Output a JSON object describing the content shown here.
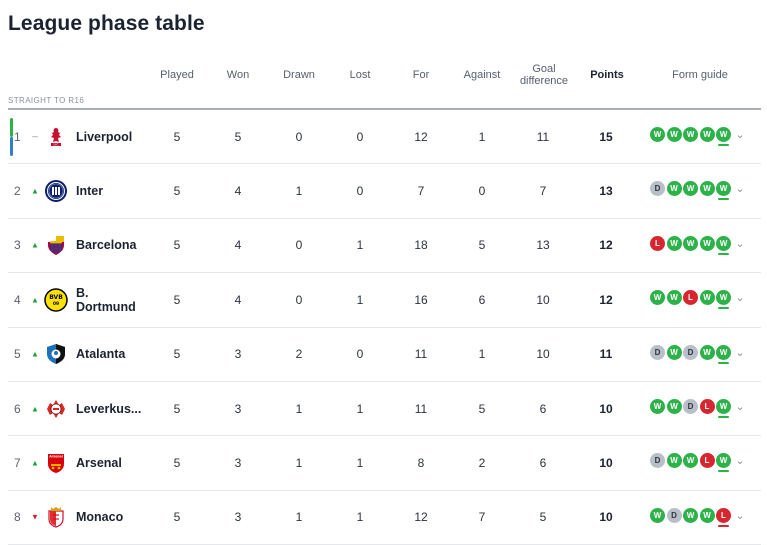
{
  "page_title": "League phase table",
  "headers": {
    "played": "Played",
    "won": "Won",
    "drawn": "Drawn",
    "lost": "Lost",
    "for": "For",
    "against": "Against",
    "gd_line1": "Goal",
    "gd_line2": "difference",
    "points": "Points",
    "form": "Form guide"
  },
  "section_label": "STRAIGHT TO R16",
  "colors": {
    "win": "#2db24a",
    "draw": "#b8bfc8",
    "loss": "#d6262f",
    "qualify_top": "#2db24a",
    "qualify_bottom": "#2e7fcf"
  },
  "rows": [
    {
      "pos": "1",
      "move": "same",
      "move_icon": "–",
      "team": "Liverpool",
      "crest": "liverpool-crest-icon",
      "played": "5",
      "won": "5",
      "drawn": "0",
      "lost": "0",
      "for": "12",
      "against": "1",
      "gd": "11",
      "points": "15",
      "form": [
        "W",
        "W",
        "W",
        "W",
        "W"
      ]
    },
    {
      "pos": "2",
      "move": "up",
      "move_icon": "▲",
      "team": "Inter",
      "crest": "inter-crest-icon",
      "played": "5",
      "won": "4",
      "drawn": "1",
      "lost": "0",
      "for": "7",
      "against": "0",
      "gd": "7",
      "points": "13",
      "form": [
        "D",
        "W",
        "W",
        "W",
        "W"
      ]
    },
    {
      "pos": "3",
      "move": "up",
      "move_icon": "▲",
      "team": "Barcelona",
      "crest": "barcelona-crest-icon",
      "played": "5",
      "won": "4",
      "drawn": "0",
      "lost": "1",
      "for": "18",
      "against": "5",
      "gd": "13",
      "points": "12",
      "form": [
        "L",
        "W",
        "W",
        "W",
        "W"
      ]
    },
    {
      "pos": "4",
      "move": "up",
      "move_icon": "▲",
      "team": "B. Dortmund",
      "crest": "dortmund-crest-icon",
      "played": "5",
      "won": "4",
      "drawn": "0",
      "lost": "1",
      "for": "16",
      "against": "6",
      "gd": "10",
      "points": "12",
      "form": [
        "W",
        "W",
        "L",
        "W",
        "W"
      ]
    },
    {
      "pos": "5",
      "move": "up",
      "move_icon": "▲",
      "team": "Atalanta",
      "crest": "atalanta-crest-icon",
      "played": "5",
      "won": "3",
      "drawn": "2",
      "lost": "0",
      "for": "11",
      "against": "1",
      "gd": "10",
      "points": "11",
      "form": [
        "D",
        "W",
        "D",
        "W",
        "W"
      ]
    },
    {
      "pos": "6",
      "move": "up",
      "move_icon": "▲",
      "team": "Leverkus...",
      "crest": "leverkusen-crest-icon",
      "played": "5",
      "won": "3",
      "drawn": "1",
      "lost": "1",
      "for": "11",
      "against": "5",
      "gd": "6",
      "points": "10",
      "form": [
        "W",
        "W",
        "D",
        "L",
        "W"
      ]
    },
    {
      "pos": "7",
      "move": "up",
      "move_icon": "▲",
      "team": "Arsenal",
      "crest": "arsenal-crest-icon",
      "played": "5",
      "won": "3",
      "drawn": "1",
      "lost": "1",
      "for": "8",
      "against": "2",
      "gd": "6",
      "points": "10",
      "form": [
        "D",
        "W",
        "W",
        "L",
        "W"
      ]
    },
    {
      "pos": "8",
      "move": "down",
      "move_icon": "▼",
      "team": "Monaco",
      "crest": "monaco-crest-icon",
      "played": "5",
      "won": "3",
      "drawn": "1",
      "lost": "1",
      "for": "12",
      "against": "7",
      "gd": "5",
      "points": "10",
      "form": [
        "W",
        "D",
        "W",
        "W",
        "L"
      ]
    }
  ]
}
